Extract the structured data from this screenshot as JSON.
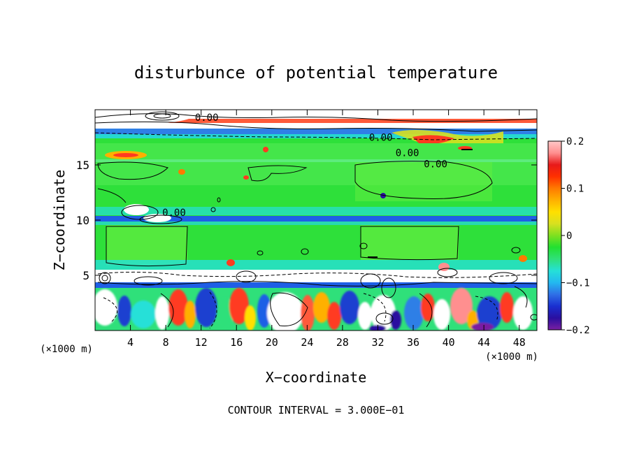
{
  "chart_data": {
    "type": "heatmap",
    "title": "disturbunce of potential temperature",
    "xlabel": "X−coordinate",
    "ylabel": "Z−coordinate",
    "x_unit_left": "(×1000 m)",
    "x_unit_right": "(×1000 m)",
    "footer": "CONTOUR INTERVAL = 3.000E−01",
    "xlim": [
      0,
      50
    ],
    "ylim": [
      0,
      20
    ],
    "x_ticks": [
      4,
      8,
      12,
      16,
      20,
      24,
      28,
      32,
      36,
      40,
      44,
      48
    ],
    "x_tick_labels": [
      "4",
      "8",
      "12",
      "16",
      "20",
      "24",
      "28",
      "32",
      "36",
      "40",
      "44",
      "48"
    ],
    "y_ticks": [
      5,
      10,
      15
    ],
    "y_tick_labels": [
      "5",
      "10",
      "15"
    ],
    "colorbar": {
      "range": [
        -0.2,
        0.2
      ],
      "ticks": [
        0.2,
        0.1,
        0,
        -0.1,
        -0.2
      ],
      "tick_labels": [
        "0.2",
        "0.1",
        "0",
        "−0.1",
        "−0.2"
      ],
      "colors": [
        "#7a1fa2",
        "#2a0fa0",
        "#1a2fd0",
        "#2f6fe6",
        "#23b8f0",
        "#25e0d8",
        "#2fe07a",
        "#22e030",
        "#7fe020",
        "#d8e020",
        "#ffe000",
        "#ffb000",
        "#ff7a00",
        "#ff3000",
        "#e81a1a",
        "#ff8f8f",
        "#ffc8c8"
      ]
    },
    "contour_labels": [
      {
        "text": "0.00",
        "x": 11.3,
        "y": 19.3
      },
      {
        "text": "0.00",
        "x": 31.0,
        "y": 17.5
      },
      {
        "text": "0.00",
        "x": 34.0,
        "y": 16.1
      },
      {
        "text": "0.00",
        "x": 37.2,
        "y": 15.1
      },
      {
        "text": "0.00",
        "x": 7.6,
        "y": 10.7
      }
    ],
    "grid": false
  }
}
